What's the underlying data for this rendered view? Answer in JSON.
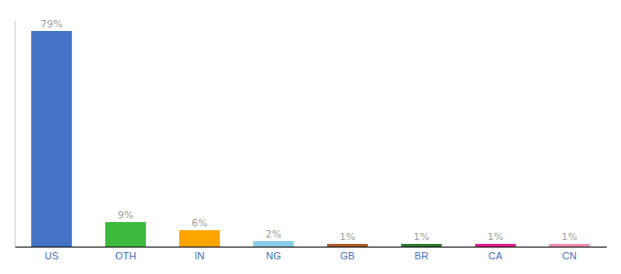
{
  "chart_data": {
    "type": "bar",
    "categories": [
      "US",
      "OTH",
      "IN",
      "NG",
      "GB",
      "BR",
      "CA",
      "CN"
    ],
    "values": [
      79,
      9,
      6,
      2,
      1,
      1,
      1,
      1
    ],
    "value_labels": [
      "79%",
      "9%",
      "6%",
      "2%",
      "1%",
      "1%",
      "1%",
      "1%"
    ],
    "colors": [
      "#4472c4",
      "#3dba3d",
      "#ffa500",
      "#87ceeb",
      "#b05c2a",
      "#2e7d32",
      "#e91e8c",
      "#f48fb1"
    ],
    "ylim": [
      0,
      83
    ],
    "data_labels": true,
    "tick_labels": "x",
    "grid": false
  }
}
